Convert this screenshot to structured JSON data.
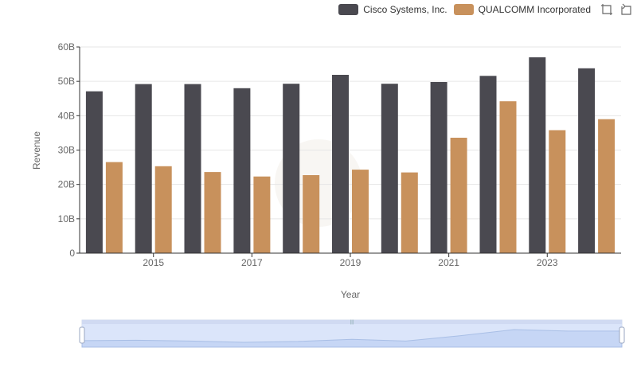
{
  "chart_data": {
    "type": "bar",
    "title": "",
    "xlabel": "Year",
    "ylabel": "Revenue",
    "ylim": [
      0,
      60000000000
    ],
    "yticks": [
      "0",
      "10B",
      "20B",
      "30B",
      "40B",
      "50B",
      "60B"
    ],
    "xtick_labels": [
      "2015",
      "2017",
      "2019",
      "2021",
      "2023"
    ],
    "categories": [
      "2014",
      "2015",
      "2016",
      "2017",
      "2018",
      "2019",
      "2020",
      "2021",
      "2022",
      "2023",
      "2024"
    ],
    "series": [
      {
        "name": "Cisco Systems, Inc.",
        "color": "#4a4950",
        "values": [
          47100000000,
          49200000000,
          49200000000,
          48000000000,
          49300000000,
          51900000000,
          49300000000,
          49800000000,
          51600000000,
          57000000000,
          53800000000
        ]
      },
      {
        "name": "QUALCOMM Incorporated",
        "color": "#c8915c",
        "values": [
          26500000000,
          25300000000,
          23600000000,
          22300000000,
          22700000000,
          24300000000,
          23500000000,
          33600000000,
          44200000000,
          35800000000,
          39000000000
        ]
      }
    ],
    "grid": true,
    "legend_position": "top-right"
  },
  "legend": {
    "items": [
      {
        "label": "Cisco Systems, Inc.",
        "color": "#4a4950"
      },
      {
        "label": "QUALCOMM Incorporated",
        "color": "#c8915c"
      }
    ]
  },
  "toolbox": {
    "zoom_icon": "zoom-select-icon",
    "reset_icon": "zoom-reset-icon"
  }
}
